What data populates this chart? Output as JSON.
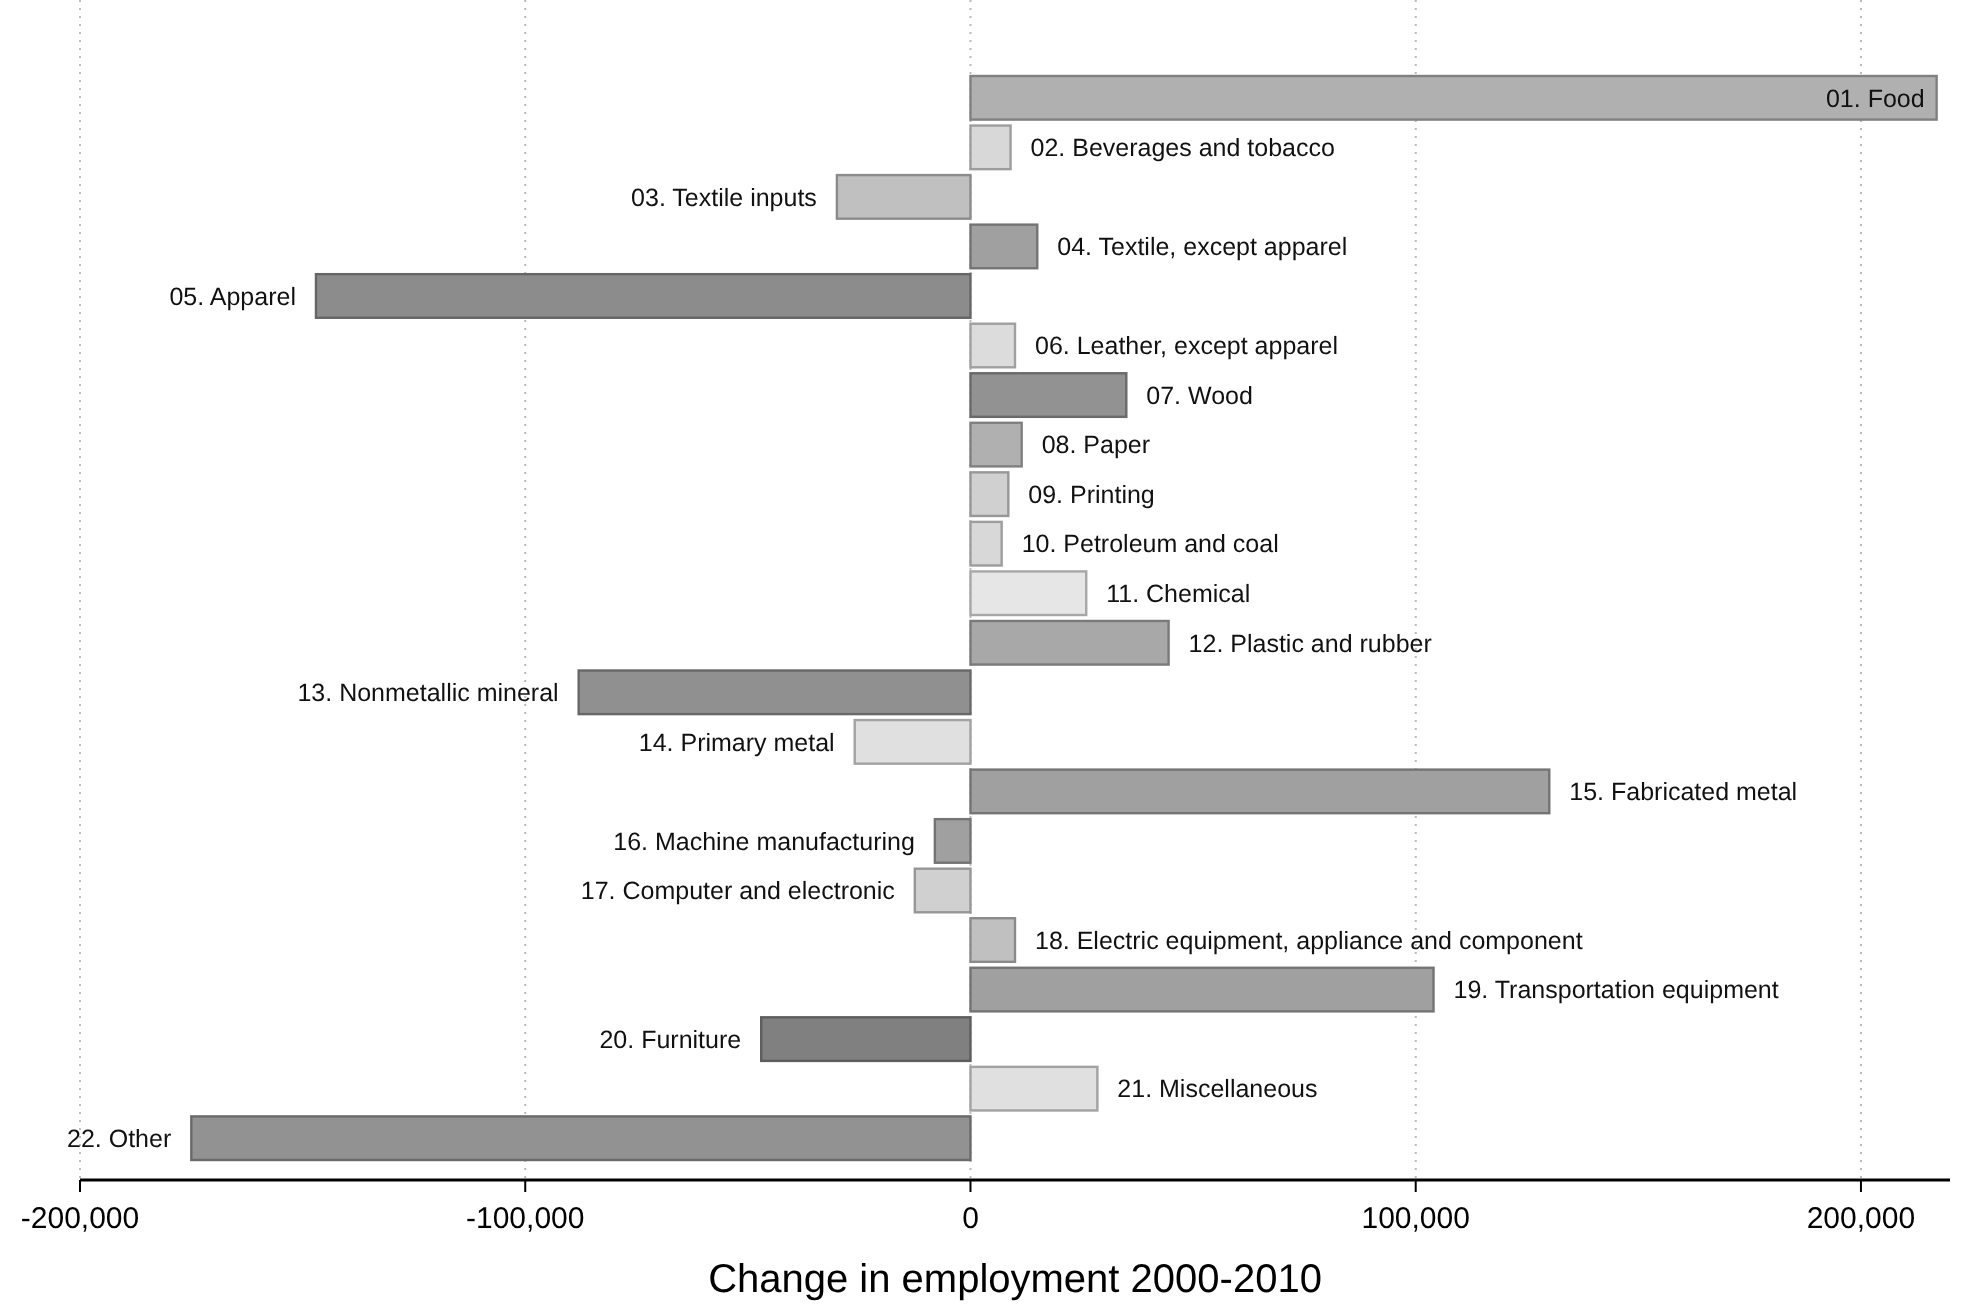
{
  "chart_data": {
    "type": "bar",
    "orientation": "horizontal",
    "xlabel": "Change in employment 2000-2010",
    "categories": [
      "01. Food",
      "02. Beverages and tobacco",
      "03. Textile inputs",
      "04. Textile, except apparel",
      "05. Apparel",
      "06. Leather, except apparel",
      "07. Wood",
      "08. Paper",
      "09. Printing",
      "10. Petroleum and coal",
      "11. Chemical",
      "12. Plastic and rubber",
      "13. Nonmetallic mineral",
      "14. Primary metal",
      "15. Fabricated metal",
      "16. Machine manufacturing",
      "17. Computer and electronic",
      "18. Electric equipment, appliance and component",
      "19. Transportation equipment",
      "20. Furniture",
      "21. Miscellaneous",
      "22. Other"
    ],
    "values": [
      217000,
      9000,
      -30000,
      15000,
      -147000,
      10000,
      35000,
      11500,
      8500,
      7000,
      26000,
      44500,
      -88000,
      -26000,
      130000,
      -8000,
      -12500,
      10000,
      104000,
      -47000,
      28500,
      -175000
    ],
    "colors": [
      "#b0b0b0",
      "#d8d8d8",
      "#c0c0c0",
      "#a0a0a0",
      "#8c8c8c",
      "#dcdcdc",
      "#929292",
      "#b0b0b0",
      "#d0d0d0",
      "#d8d8d8",
      "#e6e6e6",
      "#a8a8a8",
      "#909090",
      "#e0e0e0",
      "#a0a0a0",
      "#a0a0a0",
      "#d0d0d0",
      "#c0c0c0",
      "#a0a0a0",
      "#808080",
      "#e0e0e0",
      "#929292"
    ],
    "xlim": [
      -200000,
      220000
    ],
    "xticks": [
      {
        "value": -200000,
        "label": "-200,000"
      },
      {
        "value": -100000,
        "label": "-100,000"
      },
      0,
      {
        "value": 100000,
        "label": "100,000"
      },
      {
        "value": 200000,
        "label": "200,000"
      }
    ],
    "grid": "x"
  }
}
